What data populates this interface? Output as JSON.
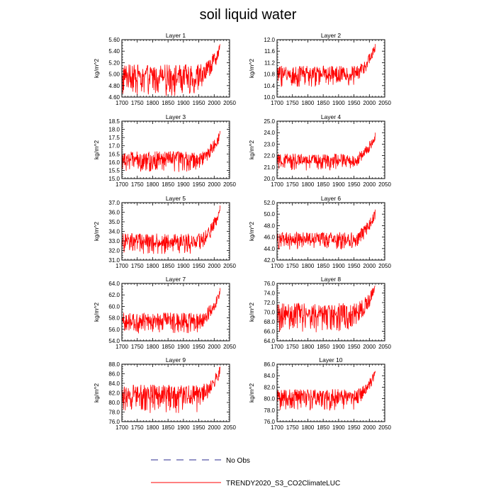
{
  "figure": {
    "title": "soil liquid water",
    "legend": [
      {
        "label": "No Obs",
        "style": "dashed",
        "color": "#2b2b8f"
      },
      {
        "label": "TRENDY2020_S3_CO2ClimateLUC",
        "style": "solid",
        "color": "#ff0000"
      }
    ]
  },
  "chart_data": [
    {
      "type": "line",
      "title": "Layer 1",
      "ylabel": "kg/m^2",
      "xlabel": "",
      "xlim": [
        1700,
        2050
      ],
      "ylim": [
        4.6,
        5.6
      ],
      "xticks": [
        1700,
        1750,
        1800,
        1850,
        1900,
        1950,
        2000,
        2050
      ],
      "xtick_labels": [
        "1700",
        "1750",
        "1800",
        "1850",
        "1900",
        "1950",
        "2000",
        "2050"
      ],
      "yticks": [
        4.6,
        4.8,
        5.0,
        5.2,
        5.4,
        5.6
      ],
      "ytick_labels": [
        "4.60",
        "4.80",
        "5.00",
        "5.20",
        "5.40",
        "5.60"
      ],
      "series": [
        {
          "name": "TRENDY2020_S3_CO2ClimateLUC",
          "color": "#ff0000",
          "x_start": 1700,
          "x_end": 2019,
          "baseline": 4.98,
          "low": 4.62,
          "high": 5.15,
          "final": 5.52
        }
      ]
    },
    {
      "type": "line",
      "title": "Layer 2",
      "ylabel": "kg/m^2",
      "xlabel": "",
      "xlim": [
        1700,
        2050
      ],
      "ylim": [
        10.0,
        12.0
      ],
      "xticks": [
        1700,
        1750,
        1800,
        1850,
        1900,
        1950,
        2000,
        2050
      ],
      "xtick_labels": [
        "1700",
        "1750",
        "1800",
        "1850",
        "1900",
        "1950",
        "2000",
        "2050"
      ],
      "yticks": [
        10.0,
        10.4,
        10.8,
        11.2,
        11.6,
        12.0
      ],
      "ytick_labels": [
        "10.0",
        "10.4",
        "10.8",
        "11.2",
        "11.6",
        "12.0"
      ],
      "series": [
        {
          "name": "TRENDY2020_S3_CO2ClimateLUC",
          "color": "#ff0000",
          "x_start": 1700,
          "x_end": 2019,
          "baseline": 10.8,
          "low": 10.35,
          "high": 11.15,
          "final": 11.85
        }
      ]
    },
    {
      "type": "line",
      "title": "Layer 3",
      "ylabel": "kg/m^2",
      "xlabel": "",
      "xlim": [
        1700,
        2050
      ],
      "ylim": [
        15.0,
        18.5
      ],
      "xticks": [
        1700,
        1750,
        1800,
        1850,
        1900,
        1950,
        2000,
        2050
      ],
      "xtick_labels": [
        "1700",
        "1750",
        "1800",
        "1850",
        "1900",
        "1950",
        "2000",
        "2050"
      ],
      "yticks": [
        15.0,
        15.5,
        16.0,
        16.5,
        17.0,
        17.5,
        18.0,
        18.5
      ],
      "ytick_labels": [
        "15.0",
        "15.5",
        "16.0",
        "16.5",
        "17.0",
        "17.5",
        "18.0",
        "18.5"
      ],
      "series": [
        {
          "name": "TRENDY2020_S3_CO2ClimateLUC",
          "color": "#ff0000",
          "x_start": 1700,
          "x_end": 2019,
          "baseline": 16.2,
          "low": 15.4,
          "high": 16.7,
          "final": 17.9
        }
      ]
    },
    {
      "type": "line",
      "title": "Layer 4",
      "ylabel": "kg/m^2",
      "xlabel": "",
      "xlim": [
        1700,
        2050
      ],
      "ylim": [
        20.0,
        25.0
      ],
      "xticks": [
        1700,
        1750,
        1800,
        1850,
        1900,
        1950,
        2000,
        2050
      ],
      "xtick_labels": [
        "1700",
        "1750",
        "1800",
        "1850",
        "1900",
        "1950",
        "2000",
        "2050"
      ],
      "yticks": [
        20.0,
        21.0,
        22.0,
        23.0,
        24.0,
        25.0
      ],
      "ytick_labels": [
        "20.0",
        "21.0",
        "22.0",
        "23.0",
        "24.0",
        "25.0"
      ],
      "series": [
        {
          "name": "TRENDY2020_S3_CO2ClimateLUC",
          "color": "#ff0000",
          "x_start": 1700,
          "x_end": 2019,
          "baseline": 21.6,
          "low": 20.7,
          "high": 22.3,
          "final": 24.0
        }
      ]
    },
    {
      "type": "line",
      "title": "Layer 5",
      "ylabel": "kg/m^2",
      "xlabel": "",
      "xlim": [
        1700,
        2050
      ],
      "ylim": [
        31.0,
        37.0
      ],
      "xticks": [
        1700,
        1750,
        1800,
        1850,
        1900,
        1950,
        2000,
        2050
      ],
      "xtick_labels": [
        "1700",
        "1750",
        "1800",
        "1850",
        "1900",
        "1950",
        "2000",
        "2050"
      ],
      "yticks": [
        31.0,
        32.0,
        33.0,
        34.0,
        35.0,
        36.0,
        37.0
      ],
      "ytick_labels": [
        "31.0",
        "32.0",
        "33.0",
        "34.0",
        "35.0",
        "36.0",
        "37.0"
      ],
      "series": [
        {
          "name": "TRENDY2020_S3_CO2ClimateLUC",
          "color": "#ff0000",
          "x_start": 1700,
          "x_end": 2019,
          "baseline": 32.9,
          "low": 31.6,
          "high": 34.1,
          "final": 36.7
        }
      ]
    },
    {
      "type": "line",
      "title": "Layer 6",
      "ylabel": "kg/m^2",
      "xlabel": "",
      "xlim": [
        1700,
        2050
      ],
      "ylim": [
        42.0,
        52.0
      ],
      "xticks": [
        1700,
        1750,
        1800,
        1850,
        1900,
        1950,
        2000,
        2050
      ],
      "xtick_labels": [
        "1700",
        "1750",
        "1800",
        "1850",
        "1900",
        "1950",
        "2000",
        "2050"
      ],
      "yticks": [
        42.0,
        44.0,
        46.0,
        48.0,
        50.0,
        52.0
      ],
      "ytick_labels": [
        "42.0",
        "44.0",
        "46.0",
        "48.0",
        "50.0",
        "52.0"
      ],
      "series": [
        {
          "name": "TRENDY2020_S3_CO2ClimateLUC",
          "color": "#ff0000",
          "x_start": 1700,
          "x_end": 2019,
          "baseline": 45.6,
          "low": 43.8,
          "high": 47.3,
          "final": 50.8
        }
      ]
    },
    {
      "type": "line",
      "title": "Layer 7",
      "ylabel": "kg/m^2",
      "xlabel": "",
      "xlim": [
        1700,
        2050
      ],
      "ylim": [
        54.0,
        64.0
      ],
      "xticks": [
        1700,
        1750,
        1800,
        1850,
        1900,
        1950,
        2000,
        2050
      ],
      "xtick_labels": [
        "1700",
        "1750",
        "1800",
        "1850",
        "1900",
        "1950",
        "2000",
        "2050"
      ],
      "yticks": [
        54.0,
        56.0,
        58.0,
        60.0,
        62.0,
        64.0
      ],
      "ytick_labels": [
        "54.0",
        "56.0",
        "58.0",
        "60.0",
        "62.0",
        "64.0"
      ],
      "series": [
        {
          "name": "TRENDY2020_S3_CO2ClimateLUC",
          "color": "#ff0000",
          "x_start": 1700,
          "x_end": 2019,
          "baseline": 57.5,
          "low": 55.3,
          "high": 59.3,
          "final": 63.2
        }
      ]
    },
    {
      "type": "line",
      "title": "Layer 8",
      "ylabel": "kg/m^2",
      "xlabel": "",
      "xlim": [
        1700,
        2050
      ],
      "ylim": [
        64.0,
        76.0
      ],
      "xticks": [
        1700,
        1750,
        1800,
        1850,
        1900,
        1950,
        2000,
        2050
      ],
      "xtick_labels": [
        "1700",
        "1750",
        "1800",
        "1850",
        "1900",
        "1950",
        "2000",
        "2050"
      ],
      "yticks": [
        64.0,
        66.0,
        68.0,
        70.0,
        72.0,
        74.0,
        76.0
      ],
      "ytick_labels": [
        "64.0",
        "66.0",
        "68.0",
        "70.0",
        "72.0",
        "74.0",
        "76.0"
      ],
      "series": [
        {
          "name": "TRENDY2020_S3_CO2ClimateLUC",
          "color": "#ff0000",
          "x_start": 1700,
          "x_end": 2019,
          "baseline": 69.8,
          "low": 65.8,
          "high": 71.6,
          "final": 75.5
        }
      ]
    },
    {
      "type": "line",
      "title": "Layer 9",
      "ylabel": "kg/m^2",
      "xlabel": "",
      "xlim": [
        1700,
        2050
      ],
      "ylim": [
        76.0,
        88.0
      ],
      "xticks": [
        1700,
        1750,
        1800,
        1850,
        1900,
        1950,
        2000,
        2050
      ],
      "xtick_labels": [
        "1700",
        "1750",
        "1800",
        "1850",
        "1900",
        "1950",
        "2000",
        "2050"
      ],
      "yticks": [
        76.0,
        78.0,
        80.0,
        82.0,
        84.0,
        86.0,
        88.0
      ],
      "ytick_labels": [
        "76.0",
        "78.0",
        "80.0",
        "82.0",
        "84.0",
        "86.0",
        "88.0"
      ],
      "series": [
        {
          "name": "TRENDY2020_S3_CO2ClimateLUC",
          "color": "#ff0000",
          "x_start": 1700,
          "x_end": 2019,
          "baseline": 81.7,
          "low": 77.8,
          "high": 83.4,
          "final": 87.5
        }
      ]
    },
    {
      "type": "line",
      "title": "Layer 10",
      "ylabel": "kg/m^2",
      "xlabel": "",
      "xlim": [
        1700,
        2050
      ],
      "ylim": [
        76.0,
        86.0
      ],
      "xticks": [
        1700,
        1750,
        1800,
        1850,
        1900,
        1950,
        2000,
        2050
      ],
      "xtick_labels": [
        "1700",
        "1750",
        "1800",
        "1850",
        "1900",
        "1950",
        "2000",
        "2050"
      ],
      "yticks": [
        76.0,
        78.0,
        80.0,
        82.0,
        84.0,
        86.0
      ],
      "ytick_labels": [
        "76.0",
        "78.0",
        "80.0",
        "82.0",
        "84.0",
        "86.0"
      ],
      "series": [
        {
          "name": "TRENDY2020_S3_CO2ClimateLUC",
          "color": "#ff0000",
          "x_start": 1700,
          "x_end": 2019,
          "baseline": 80.3,
          "low": 78.0,
          "high": 81.8,
          "final": 84.8
        }
      ]
    }
  ]
}
